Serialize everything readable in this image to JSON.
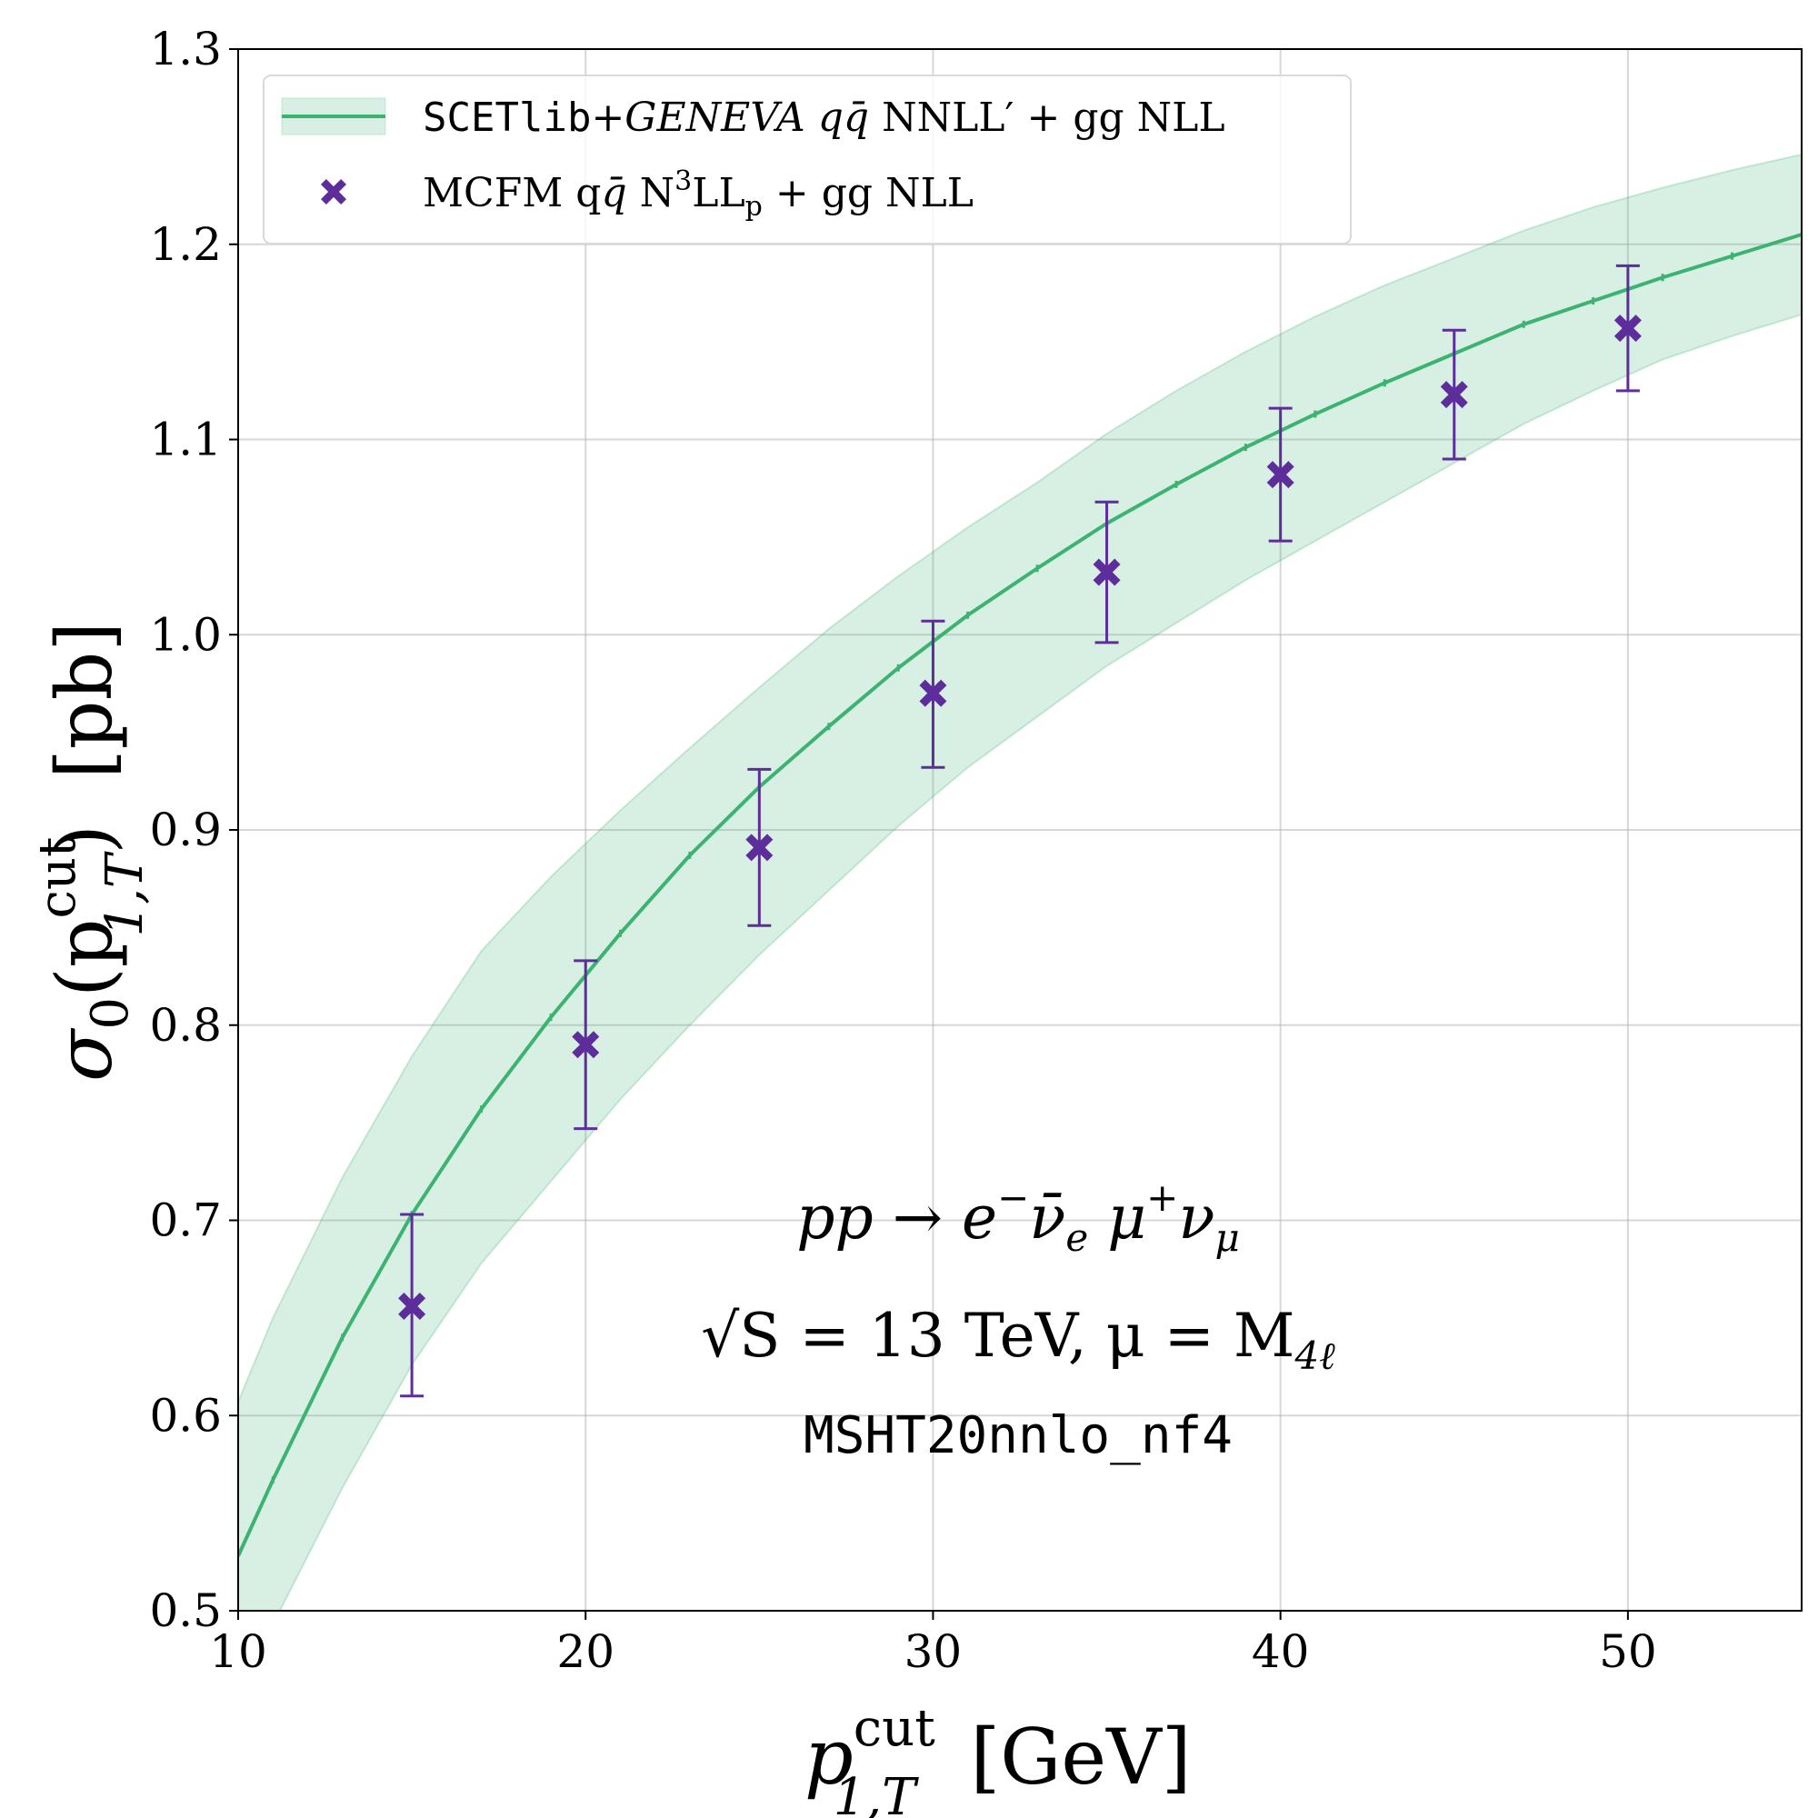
{
  "chart_data": {
    "type": "line",
    "xlabel": {
      "main": "p",
      "sup": "cut",
      "sub": "1,T",
      "unit": "[GeV]"
    },
    "ylabel": {
      "main": "σ",
      "sub0": "0",
      "open": "(p",
      "sup": "cut",
      "sub": "1,T",
      "close": ")",
      "unit": "[pb]"
    },
    "xlim": [
      10,
      55
    ],
    "ylim": [
      0.5,
      1.3
    ],
    "grid": true,
    "legend_position": "top-left",
    "x_ticks": [
      10,
      20,
      30,
      40,
      50
    ],
    "x_tick_labels": [
      "10",
      "20",
      "30",
      "40",
      "50"
    ],
    "y_ticks": [
      0.5,
      0.6,
      0.7,
      0.8,
      0.9,
      1.0,
      1.1,
      1.2,
      1.3
    ],
    "y_tick_labels": [
      "0.5",
      "0.6",
      "0.7",
      "0.8",
      "0.9",
      "1.0",
      "1.1",
      "1.2",
      "1.3"
    ],
    "series": [
      {
        "name": "SCETlib+GENEVA q̄q NNLL' + gg NLL",
        "legend": {
          "mono": "SCETlib",
          "rest": "+GENEVA  q",
          "qbar": "q̄",
          "tail": " NNLL′ + gg NLL"
        },
        "kind": "line_band",
        "color": "#3cb371",
        "band_color": "#3cb371",
        "x": [
          10,
          11,
          13,
          15,
          17,
          19,
          21,
          23,
          25,
          27,
          29,
          31,
          33,
          35,
          37,
          39,
          41,
          43,
          45,
          47,
          49,
          51,
          53,
          55
        ],
        "y": [
          0.528,
          0.567,
          0.64,
          0.703,
          0.757,
          0.804,
          0.847,
          0.887,
          0.922,
          0.953,
          0.983,
          1.01,
          1.034,
          1.057,
          1.077,
          1.096,
          1.113,
          1.129,
          1.144,
          1.159,
          1.171,
          1.183,
          1.194,
          1.205
        ],
        "band_upper": [
          0.607,
          0.65,
          0.722,
          0.784,
          0.838,
          0.876,
          0.91,
          0.942,
          0.973,
          1.003,
          1.03,
          1.055,
          1.078,
          1.103,
          1.125,
          1.145,
          1.163,
          1.179,
          1.193,
          1.207,
          1.219,
          1.229,
          1.238,
          1.246
        ],
        "band_lower": [
          0.462,
          0.493,
          0.563,
          0.626,
          0.678,
          0.72,
          0.762,
          0.8,
          0.836,
          0.869,
          0.902,
          0.932,
          0.958,
          0.984,
          1.006,
          1.028,
          1.048,
          1.068,
          1.088,
          1.108,
          1.125,
          1.141,
          1.153,
          1.164
        ]
      },
      {
        "name": "MCFM q̄q N3LLp + gg NLL",
        "legend": {
          "text": "MCFM  q",
          "qbar": "q̄",
          "mid": " N",
          "sup": "3",
          "ll": "LL",
          "sub": "p",
          "tail": " + gg NLL"
        },
        "kind": "errorbar",
        "color": "#5d2e9b",
        "marker": "X",
        "x": [
          15,
          20,
          25,
          30,
          35,
          40,
          45,
          50
        ],
        "y": [
          0.656,
          0.79,
          0.891,
          0.97,
          1.032,
          1.082,
          1.123,
          1.157
        ],
        "yerr_low": [
          0.046,
          0.043,
          0.04,
          0.038,
          0.036,
          0.034,
          0.033,
          0.032
        ],
        "yerr_high": [
          0.047,
          0.043,
          0.04,
          0.037,
          0.036,
          0.034,
          0.033,
          0.032
        ]
      }
    ],
    "annotations": {
      "process": {
        "a": "pp → e",
        "a_sup": "−",
        "b": "ν̄",
        "b_sub": "e",
        "c": " μ",
        "c_sup": "+",
        "d": "ν",
        "d_sub": "μ"
      },
      "energy": {
        "a": "√S = 13 TeV, μ = M",
        "a_sub": "4ℓ"
      },
      "pdf": "MSHT20nnlo_nf4"
    }
  }
}
